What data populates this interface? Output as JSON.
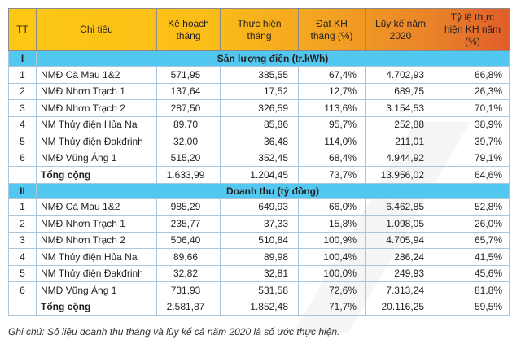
{
  "headers": [
    "TT",
    "Chỉ tiêu",
    "Kê hoạch tháng",
    "Thực hiện tháng",
    "Đạt KH tháng (%)",
    "Lũy kế năm 2020",
    "Tỷ lệ thực hiện KH năm (%)"
  ],
  "colors": {
    "header_start": "#fdc814",
    "header_end": "#e05d2a",
    "section": "#52c8f1",
    "border": "#a9c6dc"
  },
  "sections": [
    {
      "num": "I",
      "title": "Sản lượng điện (tr.kWh)",
      "rows": [
        [
          "1",
          "NMĐ Cà Mau 1&2",
          "571,95",
          "385,55",
          "67,4%",
          "4.702,93",
          "66,8%"
        ],
        [
          "2",
          "NMĐ Nhơn Trạch 1",
          "137,64",
          "17,52",
          "12,7%",
          "689,75",
          "26,3%"
        ],
        [
          "3",
          "NMĐ Nhơn Trạch 2",
          "287,50",
          "326,59",
          "113,6%",
          "3.154,53",
          "70,1%"
        ],
        [
          "4",
          "NM Thủy điện Hủa Na",
          "89,70",
          "85,86",
          "95,7%",
          "252,88",
          "38,9%"
        ],
        [
          "5",
          "NM Thủy điện Đakđrinh",
          "32,00",
          "36,48",
          "114,0%",
          "211,01",
          "39,7%"
        ],
        [
          "6",
          "NMĐ Vũng Áng 1",
          "515,20",
          "352,45",
          "68,4%",
          "4.944,92",
          "79,1%"
        ],
        [
          "",
          "Tổng cộng",
          "1.633,99",
          "1.204,45",
          "73,7%",
          "13.956,02",
          "64,6%"
        ]
      ]
    },
    {
      "num": "II",
      "title": "Doanh thu (tỷ đồng)",
      "rows": [
        [
          "1",
          "NMĐ Cà Mau 1&2",
          "985,29",
          "649,93",
          "66,0%",
          "6.462,85",
          "52,8%"
        ],
        [
          "2",
          "NMĐ Nhơn Trạch 1",
          "235,77",
          "37,33",
          "15,8%",
          "1.098,05",
          "26,0%"
        ],
        [
          "3",
          "NMĐ Nhơn Trạch 2",
          "506,40",
          "510,84",
          "100,9%",
          "4.705,94",
          "65,7%"
        ],
        [
          "4",
          "NM Thủy điện Hủa Na",
          "89,66",
          "89,98",
          "100,4%",
          "286,24",
          "41,5%"
        ],
        [
          "5",
          "NM Thủy điện Đakđrinh",
          "32,82",
          "32,81",
          "100,0%",
          "249,93",
          "45,6%"
        ],
        [
          "6",
          "NMĐ Vũng Áng 1",
          "731,93",
          "531,58",
          "72,6%",
          "7.313,24",
          "81,8%"
        ],
        [
          "",
          "Tổng cộng",
          "2.581,87",
          "1.852,48",
          "71,7%",
          "20.116,25",
          "59,5%"
        ]
      ]
    }
  ],
  "note": "Ghi chú: Số liệu doanh thu tháng và lũy kế cả năm 2020 là số ước thực hiện."
}
